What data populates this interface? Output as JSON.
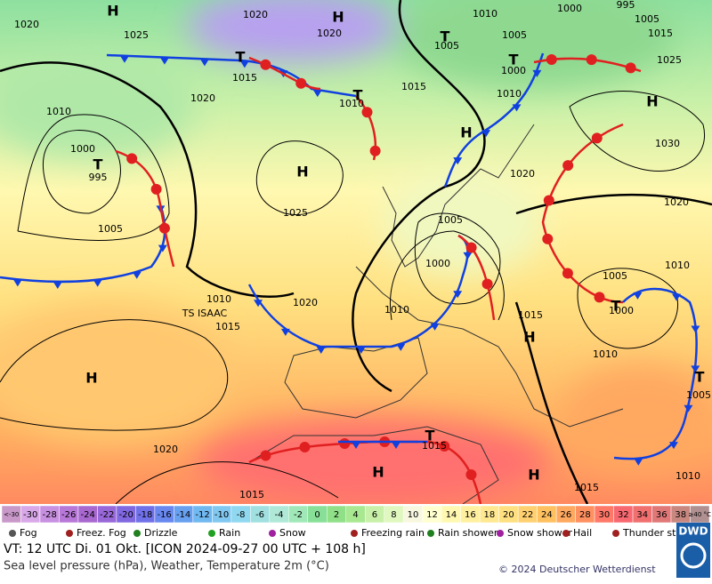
{
  "map": {
    "labels": [
      "H",
      "1020",
      "1025",
      "1020",
      "H",
      "1020",
      "1010",
      "1000",
      "995",
      "1005",
      "1015",
      "1025",
      "1005",
      "1005",
      "T",
      "1015",
      "T",
      "T",
      "1015",
      "1010",
      "1020",
      "1010",
      "1000",
      "T",
      "995",
      "H",
      "1025",
      "1005",
      "1030",
      "H",
      "T",
      "1000",
      "1010",
      "H",
      "1020",
      "1020",
      "1005",
      "1000",
      "1010",
      "1020",
      "1010",
      "TS ISAAC",
      "1015",
      "H",
      "1015",
      "1005",
      "1010",
      "1000",
      "T",
      "1010",
      "T",
      "1005",
      "H",
      "H",
      "H",
      "T",
      "1015",
      "1010",
      "1015",
      "1015",
      "1020"
    ]
  },
  "scale": {
    "labels": [
      "<-30",
      "-30",
      "-28",
      "-26",
      "-24",
      "-22",
      "-20",
      "-18",
      "-16",
      "-14",
      "-12",
      "-10",
      "-8",
      "-6",
      "-4",
      "-2",
      "0",
      "2",
      "4",
      "6",
      "8",
      "10",
      "12",
      "14",
      "16",
      "18",
      "20",
      "22",
      "24",
      "26",
      "28",
      "30",
      "32",
      "34",
      "36",
      "38",
      "≥40 °C"
    ],
    "colors": [
      "#c898c8",
      "#d8a8e8",
      "#c890e0",
      "#b878d8",
      "#a868d0",
      "#9868d8",
      "#8068e0",
      "#7070e8",
      "#6888f0",
      "#68a0f0",
      "#70b8f0",
      "#80c8f0",
      "#90d8f0",
      "#a0e0e0",
      "#b0e8d8",
      "#a0e8b8",
      "#88e098",
      "#90e088",
      "#a8e890",
      "#c8f0a8",
      "#e0f8c0",
      "#f8f8e0",
      "#ffffd0",
      "#fff8b0",
      "#fff0a0",
      "#ffe890",
      "#ffe080",
      "#ffd070",
      "#ffc060",
      "#ffa860",
      "#ff9060",
      "#ff7868",
      "#f86870",
      "#f07070",
      "#e07878",
      "#c88880",
      "#b09090"
    ]
  },
  "legend": [
    "Fog",
    "Freez. Fog",
    "Drizzle",
    "Rain",
    "Snow",
    "Freezing rain",
    "Rain shower",
    "Snow shower",
    "Hail",
    "Thunder storm"
  ],
  "footer": {
    "line1": "VT: 12 UTC Di.  01 Okt. [ICON 2024-09-27  00 UTC + 108 h]",
    "line2": "Sea level pressure (hPa), Weather, Temperature 2m (°C)",
    "copyright": "© 2024 Deutscher Wetterdienst",
    "logo": "DWD"
  }
}
